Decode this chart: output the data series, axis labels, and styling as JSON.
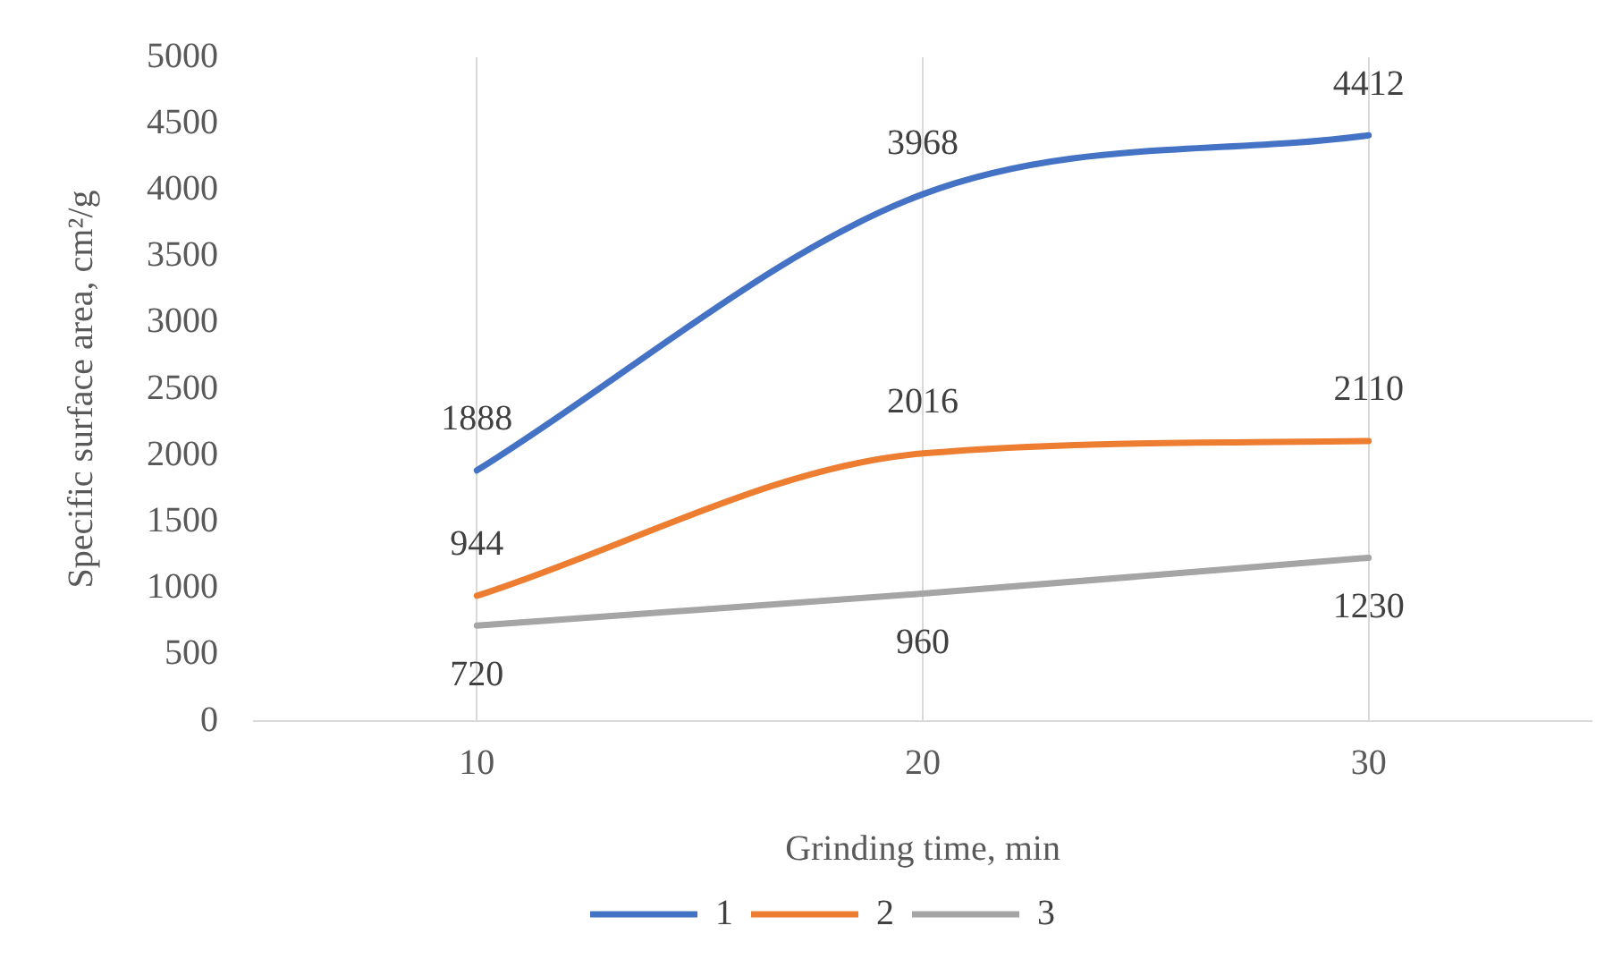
{
  "chart_data": {
    "type": "line",
    "xlabel": "Grinding time, min",
    "ylabel": "Specific surface area, cm²/g",
    "categories": [
      "10",
      "20",
      "30"
    ],
    "series": [
      {
        "name": "1",
        "color": "#4472c4",
        "values": [
          1888,
          3968,
          4412
        ]
      },
      {
        "name": "2",
        "color": "#ed7d31",
        "values": [
          944,
          2016,
          2110
        ]
      },
      {
        "name": "3",
        "color": "#a5a5a5",
        "values": [
          720,
          960,
          1230
        ]
      }
    ],
    "ylim": [
      0,
      5000
    ],
    "yticks": [
      0,
      500,
      1000,
      1500,
      2000,
      2500,
      3000,
      3500,
      4000,
      4500,
      5000
    ],
    "grid": "x",
    "legend": "bottom",
    "marker": "none",
    "line_style": "solid",
    "data_labels": true
  }
}
